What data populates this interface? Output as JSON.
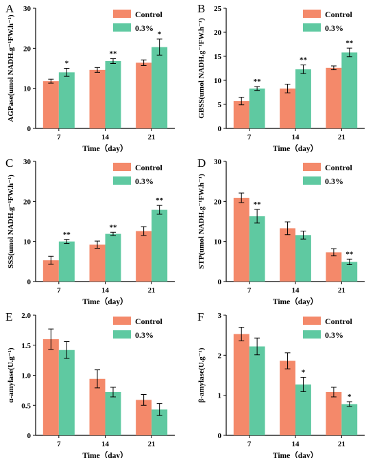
{
  "chart_data": [
    {
      "type": "bar",
      "panel_label": "A",
      "categories": [
        "7",
        "14",
        "21"
      ],
      "series": [
        {
          "name": "Control",
          "values": [
            11.8,
            14.6,
            16.4
          ],
          "errors": [
            0.5,
            0.6,
            0.7
          ],
          "significance": [
            "",
            "",
            ""
          ]
        },
        {
          "name": "0.3%",
          "values": [
            14.0,
            16.8,
            20.3
          ],
          "errors": [
            1.0,
            0.6,
            2.0
          ],
          "significance": [
            "*",
            "**",
            "*"
          ]
        }
      ],
      "xlabel": "Time（day）",
      "ylabel": "AGPase(umol NADH.g⁻¹FW.h⁻¹)",
      "ylim": [
        0,
        30
      ],
      "yticks": [
        "0",
        "10",
        "20",
        "30"
      ],
      "legend": "top-right"
    },
    {
      "type": "bar",
      "panel_label": "B",
      "categories": [
        "7",
        "14",
        "21"
      ],
      "series": [
        {
          "name": "Control",
          "values": [
            5.7,
            8.3,
            12.6
          ],
          "errors": [
            0.8,
            0.9,
            0.4
          ],
          "significance": [
            "",
            "",
            ""
          ]
        },
        {
          "name": "0.3%",
          "values": [
            8.3,
            12.3,
            15.8
          ],
          "errors": [
            0.4,
            0.9,
            0.9
          ],
          "significance": [
            "**",
            "**",
            "**"
          ]
        }
      ],
      "xlabel": "Time（day）",
      "ylabel": "GBSS(umol NADH.g⁻¹FW.h⁻¹)",
      "ylim": [
        0,
        25
      ],
      "yticks": [
        "0",
        "5",
        "10",
        "15",
        "20",
        "25"
      ],
      "legend": "top-right"
    },
    {
      "type": "bar",
      "panel_label": "C",
      "categories": [
        "7",
        "14",
        "21"
      ],
      "series": [
        {
          "name": "Control",
          "values": [
            5.3,
            9.2,
            12.6
          ],
          "errors": [
            1.0,
            0.9,
            1.1
          ],
          "significance": [
            "",
            "",
            ""
          ]
        },
        {
          "name": "0.3%",
          "values": [
            10.0,
            11.9,
            17.9
          ],
          "errors": [
            0.5,
            0.4,
            1.1
          ],
          "significance": [
            "**",
            "**",
            "**"
          ]
        }
      ],
      "xlabel": "Time（day）",
      "ylabel": "SSS(umol NADH.g⁻¹FW.h⁻¹)",
      "ylim": [
        0,
        30
      ],
      "yticks": [
        "0",
        "10",
        "20",
        "30"
      ],
      "legend": "top-right"
    },
    {
      "type": "bar",
      "panel_label": "D",
      "categories": [
        "7",
        "14",
        "21"
      ],
      "series": [
        {
          "name": "Control",
          "values": [
            20.9,
            13.3,
            7.3
          ],
          "errors": [
            1.2,
            1.6,
            0.9
          ],
          "significance": [
            "",
            "",
            ""
          ]
        },
        {
          "name": "0.3%",
          "values": [
            16.3,
            11.6,
            4.9
          ],
          "errors": [
            1.7,
            1.0,
            0.7
          ],
          "significance": [
            "**",
            "",
            "**"
          ]
        }
      ],
      "xlabel": "Time（day）",
      "ylabel": "STP(umol NADH.g⁻¹FW.h⁻¹)",
      "ylim": [
        0,
        30
      ],
      "yticks": [
        "0",
        "10",
        "20",
        "30"
      ],
      "legend": "top-right"
    },
    {
      "type": "bar",
      "panel_label": "E",
      "categories": [
        "7",
        "14",
        "21"
      ],
      "series": [
        {
          "name": "Control",
          "values": [
            1.6,
            0.94,
            0.59
          ],
          "errors": [
            0.17,
            0.15,
            0.09
          ],
          "significance": [
            "",
            "",
            ""
          ]
        },
        {
          "name": "0.3%",
          "values": [
            1.42,
            0.72,
            0.43
          ],
          "errors": [
            0.14,
            0.08,
            0.1
          ],
          "significance": [
            "",
            "",
            ""
          ]
        }
      ],
      "xlabel": "Time（day）",
      "ylabel": "α-amylase(U.g⁻¹)",
      "ylim": [
        0,
        2.0
      ],
      "yticks": [
        "0",
        "0.5",
        "1.0",
        "1.5",
        "2.0"
      ],
      "legend": "top-right"
    },
    {
      "type": "bar",
      "panel_label": "F",
      "categories": [
        "7",
        "14",
        "21"
      ],
      "series": [
        {
          "name": "Control",
          "values": [
            2.53,
            1.86,
            1.08
          ],
          "errors": [
            0.17,
            0.2,
            0.12
          ],
          "significance": [
            "",
            "",
            ""
          ]
        },
        {
          "name": "0.3%",
          "values": [
            2.22,
            1.27,
            0.78
          ],
          "errors": [
            0.21,
            0.18,
            0.06
          ],
          "significance": [
            "",
            "*",
            "*"
          ]
        }
      ],
      "xlabel": "Time（day）",
      "ylabel": "β-amylase(U.g⁻¹)",
      "ylim": [
        0,
        3
      ],
      "yticks": [
        "0",
        "1",
        "2",
        "3"
      ],
      "legend": "top-right"
    }
  ],
  "colors": {
    "control": "#f4896a",
    "treatment": "#5fc9a1",
    "axis": "#000000"
  }
}
